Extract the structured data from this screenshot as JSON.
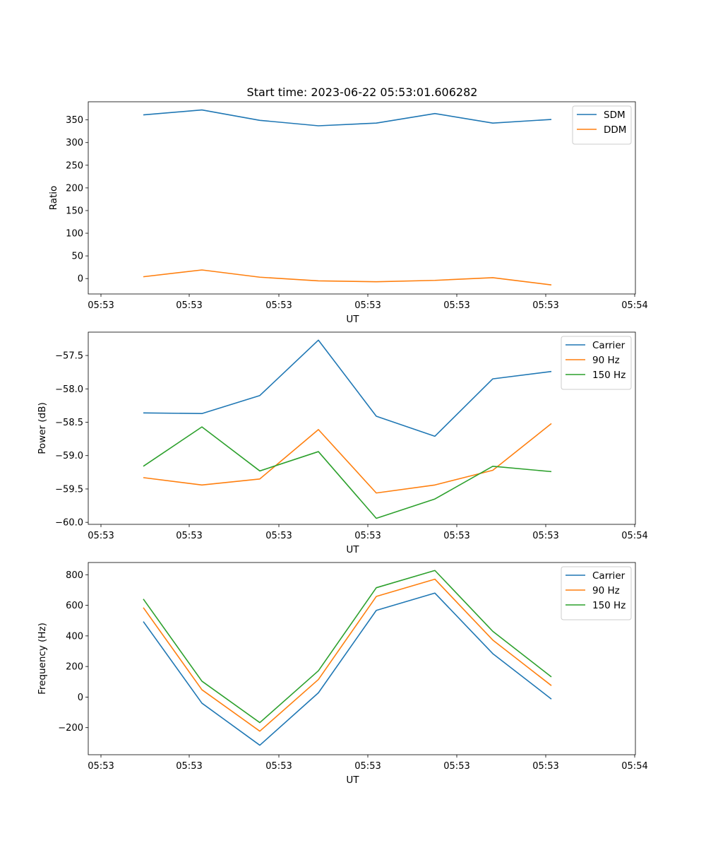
{
  "figure": {
    "title": "Start time: 2023-06-22 05:53:01.606282"
  },
  "colors": {
    "blue": "#1f77b4",
    "orange": "#ff7f0e",
    "green": "#2ca02c"
  },
  "chart_data": [
    {
      "type": "line",
      "title": "Start time: 2023-06-22 05:53:01.606282",
      "xlabel": "UT",
      "ylabel": "Ratio",
      "x_tick_labels": [
        "05:53",
        "05:53",
        "05:53",
        "05:53",
        "05:53",
        "05:53",
        "05:54"
      ],
      "y_ticks": [
        0,
        50,
        100,
        150,
        200,
        250,
        300,
        350
      ],
      "ylim": [
        -34,
        390
      ],
      "legend_position": "top-right",
      "grid": false,
      "series": [
        {
          "name": "SDM",
          "color": "#1f77b4",
          "values": [
            361,
            372,
            349,
            337,
            343,
            364,
            343,
            351
          ]
        },
        {
          "name": "DDM",
          "color": "#ff7f0e",
          "values": [
            4,
            19,
            3,
            -5,
            -7,
            -4,
            2,
            -14
          ]
        }
      ]
    },
    {
      "type": "line",
      "xlabel": "UT",
      "ylabel": "Power (dB)",
      "x_tick_labels": [
        "05:53",
        "05:53",
        "05:53",
        "05:53",
        "05:53",
        "05:53",
        "05:54"
      ],
      "y_ticks": [
        -60.0,
        -59.5,
        -59.0,
        -58.5,
        -58.0,
        -57.5
      ],
      "ylim": [
        -60.03,
        -57.15
      ],
      "legend_position": "top-right",
      "grid": false,
      "series": [
        {
          "name": "Carrier",
          "color": "#1f77b4",
          "values": [
            -58.36,
            -58.37,
            -58.1,
            -57.27,
            -58.41,
            -58.71,
            -57.85,
            -57.74
          ]
        },
        {
          "name": "90 Hz",
          "color": "#ff7f0e",
          "values": [
            -59.33,
            -59.44,
            -59.35,
            -58.61,
            -59.56,
            -59.44,
            -59.22,
            -58.52
          ]
        },
        {
          "name": "150 Hz",
          "color": "#2ca02c",
          "values": [
            -59.16,
            -58.57,
            -59.23,
            -58.94,
            -59.94,
            -59.65,
            -59.16,
            -59.24
          ]
        }
      ]
    },
    {
      "type": "line",
      "xlabel": "UT",
      "ylabel": "Frequency (Hz)",
      "x_tick_labels": [
        "05:53",
        "05:53",
        "05:53",
        "05:53",
        "05:53",
        "05:53",
        "05:54"
      ],
      "y_ticks": [
        -200,
        0,
        200,
        400,
        600,
        800
      ],
      "ylim": [
        -377,
        880
      ],
      "legend_position": "top-right",
      "grid": false,
      "series": [
        {
          "name": "Carrier",
          "color": "#1f77b4",
          "values": [
            494,
            -40,
            -315,
            28,
            567,
            680,
            284,
            -13
          ]
        },
        {
          "name": "90 Hz",
          "color": "#ff7f0e",
          "values": [
            585,
            48,
            -223,
            115,
            658,
            771,
            373,
            75
          ]
        },
        {
          "name": "150 Hz",
          "color": "#2ca02c",
          "values": [
            641,
            104,
            -167,
            172,
            715,
            828,
            430,
            132
          ]
        }
      ]
    }
  ]
}
